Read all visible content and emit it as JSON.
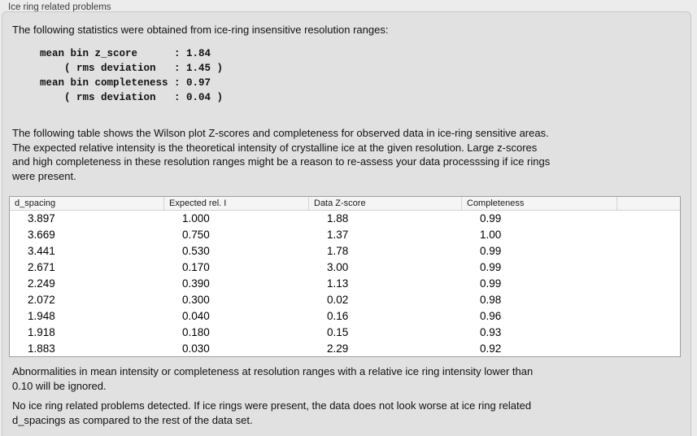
{
  "panel": {
    "title": "Ice ring related problems"
  },
  "intro": {
    "text": "The following statistics were obtained from ice-ring insensitive resolution ranges:"
  },
  "stats_block": {
    "lines": [
      "mean bin z_score      : 1.84",
      "    ( rms deviation   : 1.45 )",
      "mean bin completeness : 0.97",
      "    ( rms deviation   : 0.04 )"
    ]
  },
  "description": {
    "lines": [
      "The following table shows the Wilson plot Z-scores and completeness for observed data in ice-ring sensitive areas.",
      "The expected relative intensity is the theoretical intensity of crystalline ice at the given resolution. Large z-scores",
      "and high completeness in these resolution ranges might be a reason to re-assess your data processsing if ice rings",
      "were present."
    ]
  },
  "table": {
    "columns": [
      "d_spacing",
      "Expected rel. I",
      "Data Z-score",
      "Completeness",
      ""
    ],
    "rows": [
      [
        "3.897",
        "1.000",
        "1.88",
        "0.99"
      ],
      [
        "3.669",
        "0.750",
        "1.37",
        "1.00"
      ],
      [
        "3.441",
        "0.530",
        "1.78",
        "0.99"
      ],
      [
        "2.671",
        "0.170",
        "3.00",
        "0.99"
      ],
      [
        "2.249",
        "0.390",
        "1.13",
        "0.99"
      ],
      [
        "2.072",
        "0.300",
        "0.02",
        "0.98"
      ],
      [
        "1.948",
        "0.040",
        "0.16",
        "0.96"
      ],
      [
        "1.918",
        "0.180",
        "0.15",
        "0.93"
      ],
      [
        "1.883",
        "0.030",
        "2.29",
        "0.92"
      ]
    ]
  },
  "notes": {
    "ignore_note": {
      "lines": [
        "Abnormalities in mean intensity or completeness at resolution ranges with a relative ice ring intensity lower than",
        "0.10 will be ignored."
      ]
    },
    "result_note": {
      "lines": [
        "No ice ring related problems detected. If ice rings were present, the data does not look worse at ice ring related",
        "d_spacings as compared to the rest of the data set."
      ]
    }
  },
  "colors": {
    "page_background": "#ececec",
    "box_background": "#e1e1e1",
    "table_background": "#ffffff",
    "table_border": "#9e9e9e",
    "header_background": "#f5f5f5"
  }
}
